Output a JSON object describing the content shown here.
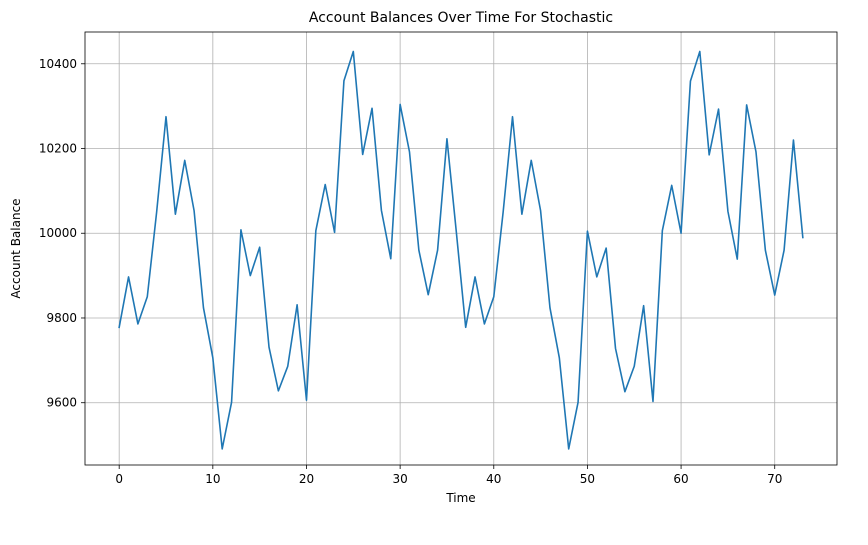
{
  "chart_data": {
    "type": "line",
    "title": "Account Balances Over Time For Stochastic",
    "xlabel": "Time",
    "ylabel": "Account Balance",
    "xlim": [
      -3.65,
      76.65
    ],
    "ylim": [
      9453,
      10475
    ],
    "xticks": [
      0,
      10,
      20,
      30,
      40,
      50,
      60,
      70
    ],
    "yticks": [
      9600,
      9800,
      10000,
      10200,
      10400
    ],
    "grid": true,
    "series": [
      {
        "color": "#1f77b4",
        "x": [
          0,
          1,
          2,
          3,
          4,
          5,
          6,
          7,
          8,
          9,
          10,
          11,
          12,
          13,
          14,
          15,
          16,
          17,
          18,
          19,
          20,
          21,
          22,
          23,
          24,
          25,
          26,
          27,
          28,
          29,
          30,
          31,
          32,
          33,
          34,
          35,
          36,
          37,
          38,
          39,
          40,
          41,
          42,
          43,
          44,
          45,
          46,
          47,
          48,
          49,
          50,
          51,
          52,
          53,
          54,
          55,
          56,
          57,
          58,
          59,
          60,
          61,
          62,
          63,
          64,
          65,
          66,
          67,
          68,
          69,
          70,
          71,
          72,
          73
        ],
        "values": [
          9778,
          9897,
          9786,
          9850,
          10050,
          10275,
          10045,
          10172,
          10053,
          9824,
          9706,
          9491,
          9601,
          10008,
          9900,
          9967,
          9731,
          9628,
          9686,
          9831,
          9606,
          10006,
          10115,
          10002,
          10360,
          10429,
          10186,
          10295,
          10054,
          9940,
          10304,
          10192,
          9960,
          9855,
          9960,
          10223,
          10003,
          9778,
          9897,
          9786,
          9850,
          10050,
          10275,
          10045,
          10172,
          10053,
          9824,
          9706,
          9491,
          9601,
          10005,
          9897,
          9965,
          9728,
          9626,
          9686,
          9829,
          9603,
          10006,
          10113,
          10000,
          10359,
          10429,
          10185,
          10293,
          10052,
          9939,
          10303,
          10192,
          9960,
          9854,
          9960,
          10220,
          9990
        ]
      }
    ]
  }
}
